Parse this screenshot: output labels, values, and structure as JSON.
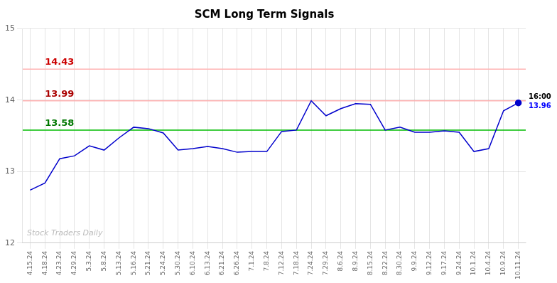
{
  "chart_data": {
    "type": "line",
    "title": "SCM Long Term Signals",
    "categories": [
      "4.15.24",
      "4.18.24",
      "4.23.24",
      "4.29.24",
      "5.3.24",
      "5.8.24",
      "5.13.24",
      "5.16.24",
      "5.21.24",
      "5.24.24",
      "5.30.24",
      "6.10.24",
      "6.13.24",
      "6.21.24",
      "6.26.24",
      "7.1.24",
      "7.8.24",
      "7.12.24",
      "7.18.24",
      "7.24.24",
      "7.29.24",
      "8.6.24",
      "8.9.24",
      "8.15.24",
      "8.22.24",
      "8.30.24",
      "9.9.24",
      "9.12.24",
      "9.17.24",
      "9.24.24",
      "10.1.24",
      "10.4.24",
      "10.9.24",
      "10.11.24"
    ],
    "values": [
      12.74,
      12.84,
      13.18,
      13.22,
      13.36,
      13.3,
      13.47,
      13.62,
      13.6,
      13.54,
      13.3,
      13.32,
      13.35,
      13.32,
      13.27,
      13.28,
      13.28,
      13.56,
      13.58,
      13.99,
      13.78,
      13.88,
      13.95,
      13.94,
      13.58,
      13.62,
      13.55,
      13.55,
      13.57,
      13.55,
      13.28,
      13.32,
      13.85,
      13.96
    ],
    "color": "#0000cc",
    "ylim": [
      12.0,
      15.0
    ],
    "yticks": [
      12,
      13,
      14,
      15
    ],
    "grid": true,
    "reference_lines": [
      {
        "value": 14.43,
        "color": "#ffb3b3",
        "label": "14.43",
        "label_color": "#cc0000"
      },
      {
        "value": 13.99,
        "color": "#ffb3b3",
        "label": "13.99",
        "label_color": "#aa0000"
      },
      {
        "value": 13.58,
        "color": "#00bb00",
        "label": "13.58",
        "label_color": "#007700"
      }
    ],
    "end_annotation": {
      "time": "16:00",
      "value": 13.96,
      "value_label": "13.96",
      "value_color": "blue"
    },
    "watermark": "Stock Traders Daily",
    "watermark_color": "#bbbbbb"
  }
}
